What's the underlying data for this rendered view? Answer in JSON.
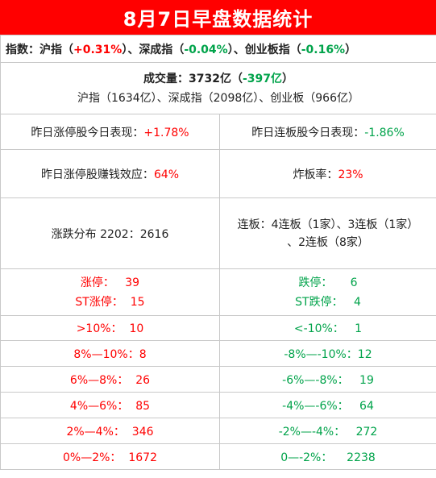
{
  "title": "8月7日早盘数据统计",
  "indices": {
    "label": "指数：",
    "sh_name": "沪指",
    "sh_value": "+0.31%",
    "sz_name": "深成指",
    "sz_value": "-0.04%",
    "cy_name": "创业板指",
    "cy_value": "-0.16%",
    "sep": "、",
    "lp": "（",
    "rp": "）"
  },
  "volume": {
    "label": "成交量：",
    "total": "3732亿",
    "change": "-397亿",
    "detail": "沪指（1634亿）、深成指（2098亿）、创业板（966亿）"
  },
  "yesterday": {
    "limitup_label": "昨日涨停股今日表现：",
    "limitup_value": "+1.78%",
    "consecutive_label": "昨日连板股今日表现：",
    "consecutive_value": "-1.86%",
    "profit_label": "昨日涨停股赚钱效应：",
    "profit_value": "64%",
    "broken_label": "炸板率：",
    "broken_value": "23%"
  },
  "distribution": {
    "text": "涨跌分布 2202：2616",
    "consecutive_line1": "连板：4连板（1家）、3连板（1家）",
    "consecutive_line2": "、2连板（8家）"
  },
  "limits": {
    "up_label": "涨停：",
    "up_value": "39",
    "st_up_label": "ST涨停：",
    "st_up_value": "15",
    "down_label": "跌停：",
    "down_value": "6",
    "st_down_label": "ST跌停：",
    "st_down_value": "4"
  },
  "ranges": [
    {
      "up_label": ">10%：",
      "up_value": "10",
      "down_label": "<-10%：",
      "down_value": "1"
    },
    {
      "up_label": "8%—10%：",
      "up_value": "8",
      "down_label": "-8%—-10%：",
      "down_value": "12"
    },
    {
      "up_label": "6%—8%：",
      "up_value": "26",
      "down_label": "-6%—-8%：",
      "down_value": "19"
    },
    {
      "up_label": "4%—6%：",
      "up_value": "85",
      "down_label": "-4%—-6%：",
      "down_value": "64"
    },
    {
      "up_label": "2%—4%：",
      "up_value": "346",
      "down_label": "-2%—-4%：",
      "down_value": "272"
    },
    {
      "up_label": "0%—2%：",
      "up_value": "1672",
      "down_label": "0—-2%：",
      "down_value": "2238"
    }
  ],
  "colors": {
    "red": "#ff0000",
    "green": "#00a34a",
    "header_bg": "#ff0000"
  }
}
